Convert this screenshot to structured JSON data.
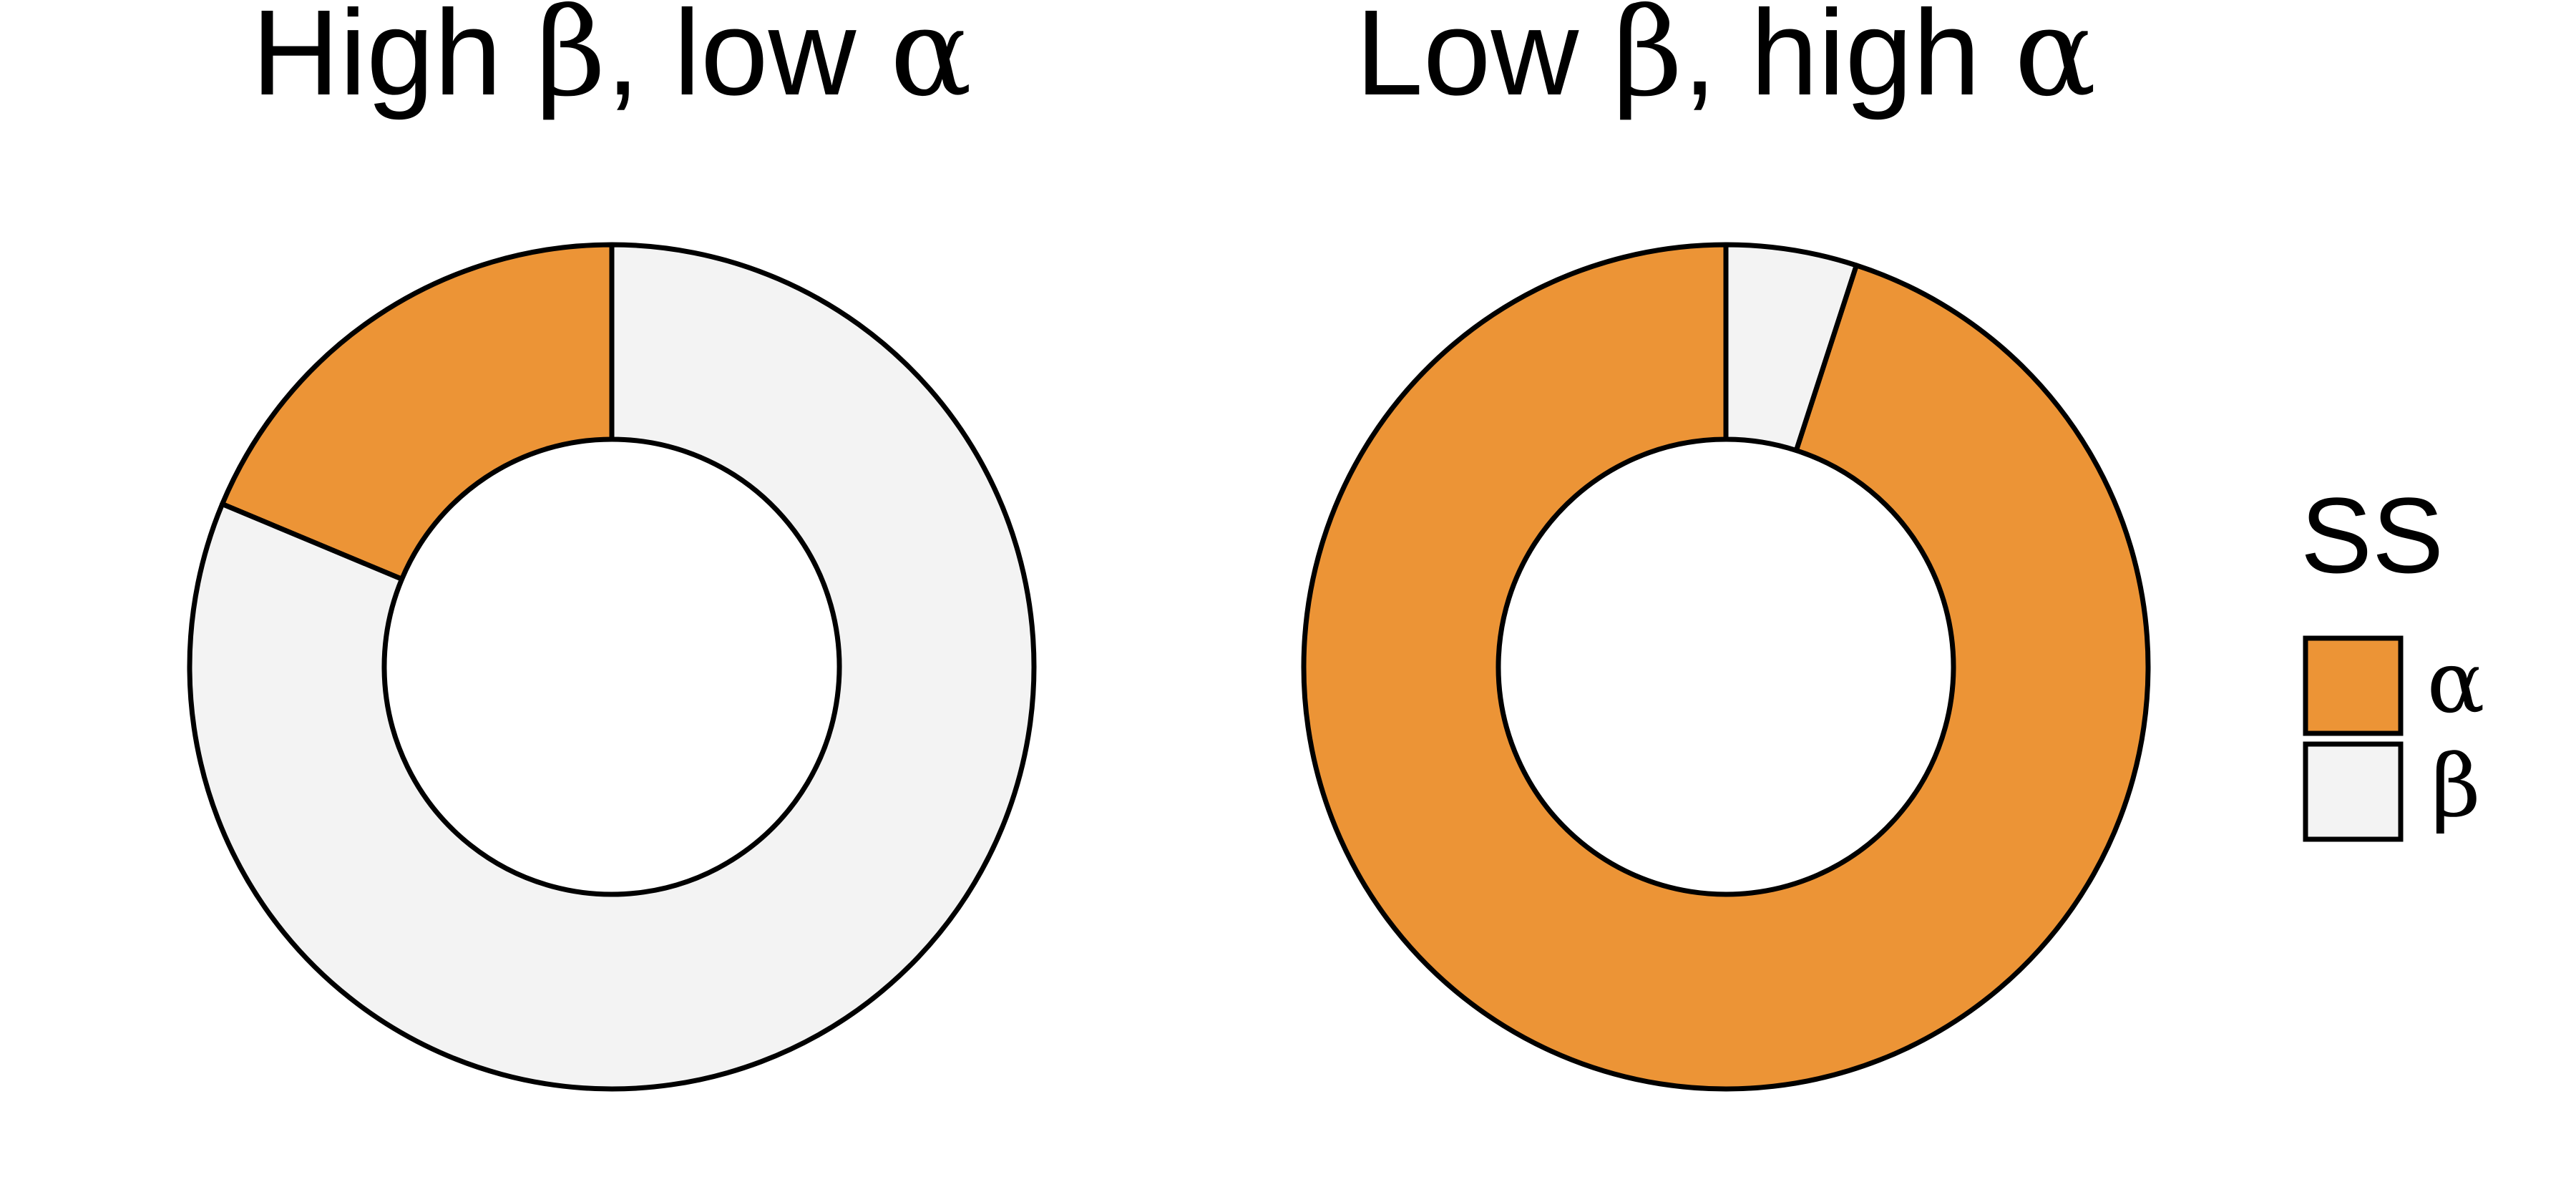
{
  "chart_data": [
    {
      "type": "donut",
      "title_parts": [
        "High ",
        "β",
        ", low ",
        "α"
      ],
      "categories": [
        "α",
        "β"
      ],
      "values": [
        0.187,
        0.813
      ],
      "colors": [
        "#EC9436",
        "#F3F3F3"
      ]
    },
    {
      "type": "donut",
      "title_parts": [
        "Low ",
        "β",
        ", high ",
        "α"
      ],
      "categories": [
        "α",
        "β"
      ],
      "values": [
        0.95,
        0.05
      ],
      "colors": [
        "#EC9436",
        "#F3F3F3"
      ]
    }
  ],
  "legend": {
    "title": "SS",
    "placement": "right",
    "items": [
      {
        "label": "α",
        "color": "#EC9436"
      },
      {
        "label": "β",
        "color": "#F3F3F3"
      }
    ]
  }
}
